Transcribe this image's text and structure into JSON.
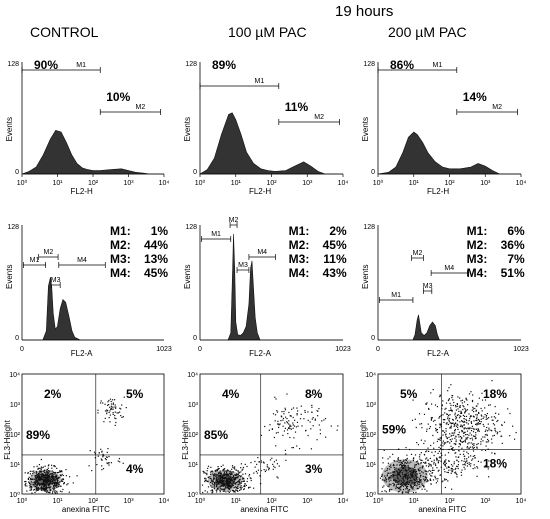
{
  "figure": {
    "time_label": "19 hours",
    "columns": [
      {
        "label": "CONTROL"
      },
      {
        "label": "100 µM  PAC"
      },
      {
        "label": "200 µM  PAC"
      }
    ]
  },
  "chart_data": [
    {
      "type": "area",
      "condition": "CONTROL",
      "xlabel": "FL2-H",
      "ylabel": "Events",
      "xscale": "log",
      "xlim": [
        1,
        10000
      ],
      "xticks": [
        "10⁰",
        "10¹",
        "10²",
        "10³",
        "10⁴"
      ],
      "yticks": [
        "0",
        "128"
      ],
      "ylim": [
        0,
        128
      ],
      "curve": {
        "log_x": [
          0,
          0.2,
          0.4,
          0.6,
          0.8,
          0.95,
          1.1,
          1.25,
          1.4,
          1.55,
          1.7,
          1.85,
          2.0,
          2.2,
          2.5,
          2.8,
          3.0,
          3.2,
          3.4,
          3.6,
          4.0
        ],
        "y": [
          0,
          3,
          8,
          22,
          40,
          50,
          48,
          36,
          22,
          12,
          7,
          5,
          4,
          4,
          5,
          6,
          4,
          2,
          1,
          0,
          0
        ]
      },
      "gates": [
        {
          "name": "M1",
          "percent": "90%",
          "range": [
            1,
            160
          ]
        },
        {
          "name": "M2",
          "percent": "10%",
          "range": [
            160,
            8000
          ]
        }
      ]
    },
    {
      "type": "area",
      "condition": "100 µM  PAC",
      "xlabel": "FL2-H",
      "ylabel": "Events",
      "xscale": "log",
      "xlim": [
        1,
        10000
      ],
      "xticks": [
        "10⁰",
        "10¹",
        "10²",
        "10³",
        "10⁴"
      ],
      "yticks": [
        "0",
        "128"
      ],
      "ylim": [
        0,
        128
      ],
      "curve": {
        "log_x": [
          0,
          0.2,
          0.4,
          0.6,
          0.8,
          0.9,
          1.0,
          1.15,
          1.3,
          1.5,
          1.7,
          1.9,
          2.1,
          2.4,
          2.7,
          2.9,
          3.1,
          3.3,
          3.5,
          4.0
        ],
        "y": [
          0,
          5,
          18,
          45,
          68,
          70,
          62,
          45,
          25,
          12,
          6,
          4,
          3,
          4,
          10,
          14,
          9,
          3,
          0,
          0
        ]
      },
      "gates": [
        {
          "name": "M1",
          "percent": "89%",
          "range": [
            1,
            160
          ]
        },
        {
          "name": "M2",
          "percent": "11%",
          "range": [
            160,
            8000
          ]
        }
      ]
    },
    {
      "type": "area",
      "condition": "200 µM  PAC",
      "xlabel": "FL2-H",
      "ylabel": "Events",
      "xscale": "log",
      "xlim": [
        1,
        10000
      ],
      "xticks": [
        "10⁰",
        "10¹",
        "10²",
        "10³",
        "10⁴"
      ],
      "yticks": [
        "0",
        "128"
      ],
      "ylim": [
        0,
        128
      ],
      "curve": {
        "log_x": [
          0,
          0.3,
          0.5,
          0.7,
          0.85,
          1.0,
          1.1,
          1.25,
          1.4,
          1.6,
          1.8,
          2.0,
          2.3,
          2.6,
          2.8,
          3.0,
          3.2,
          3.4,
          4.0
        ],
        "y": [
          0,
          2,
          8,
          25,
          42,
          48,
          45,
          36,
          24,
          14,
          8,
          6,
          6,
          8,
          12,
          9,
          4,
          0,
          0
        ]
      },
      "gates": [
        {
          "name": "M1",
          "percent": "86%",
          "range": [
            1,
            160
          ]
        },
        {
          "name": "M2",
          "percent": "14%",
          "range": [
            160,
            8000
          ]
        }
      ]
    },
    {
      "type": "area",
      "condition": "CONTROL",
      "xlabel": "FL2-A",
      "ylabel": "Events",
      "xlim": [
        0,
        1023
      ],
      "xticks": [
        "0",
        "1023"
      ],
      "yticks": [
        "0",
        "128"
      ],
      "ylim": [
        0,
        128
      ],
      "curve": {
        "x": [
          0,
          150,
          175,
          190,
          205,
          215,
          225,
          240,
          255,
          275,
          295,
          315,
          340,
          360,
          380,
          420,
          1023
        ],
        "y": [
          0,
          0,
          10,
          60,
          70,
          58,
          30,
          12,
          15,
          35,
          45,
          42,
          25,
          10,
          3,
          0,
          0
        ]
      },
      "gates": [
        {
          "name": "M1",
          "range": [
            10,
            170
          ]
        },
        {
          "name": "M2",
          "range": [
            120,
            260
          ]
        },
        {
          "name": "M3",
          "range": [
            210,
            275
          ]
        },
        {
          "name": "M4",
          "range": [
            265,
            600
          ]
        }
      ],
      "legend": [
        {
          "name": "M1:",
          "value": "1%"
        },
        {
          "name": "M2:",
          "value": "44%"
        },
        {
          "name": "M3:",
          "value": "13%"
        },
        {
          "name": "M4:",
          "value": "45%"
        }
      ]
    },
    {
      "type": "area",
      "condition": "100 µM  PAC",
      "xlabel": "FL2-A",
      "ylabel": "Events",
      "xlim": [
        0,
        1023
      ],
      "xticks": [
        "0",
        "1023"
      ],
      "yticks": [
        "0",
        "128"
      ],
      "ylim": [
        0,
        128
      ],
      "curve": {
        "x": [
          0,
          200,
          220,
          232,
          240,
          248,
          256,
          270,
          290,
          310,
          330,
          350,
          362,
          372,
          382,
          395,
          410,
          430,
          1023
        ],
        "y": [
          0,
          0,
          8,
          70,
          118,
          80,
          20,
          6,
          5,
          8,
          15,
          40,
          80,
          88,
          60,
          25,
          8,
          0,
          0
        ]
      },
      "gates": [
        {
          "name": "M1",
          "range": [
            10,
            220
          ]
        },
        {
          "name": "M2",
          "range": [
            215,
            265
          ]
        },
        {
          "name": "M3",
          "range": [
            265,
            350
          ]
        },
        {
          "name": "M4",
          "range": [
            350,
            540
          ]
        }
      ],
      "legend": [
        {
          "name": "M1:",
          "value": "2%"
        },
        {
          "name": "M2:",
          "value": "45%"
        },
        {
          "name": "M3:",
          "value": "11%"
        },
        {
          "name": "M4:",
          "value": "43%"
        }
      ]
    },
    {
      "type": "area",
      "condition": "200 µM  PAC",
      "xlabel": "FL2-A",
      "ylabel": "Events",
      "xlim": [
        0,
        1023
      ],
      "xticks": [
        "0",
        "1023"
      ],
      "yticks": [
        "0",
        "128"
      ],
      "ylim": [
        0,
        128
      ],
      "curve": {
        "x": [
          0,
          250,
          265,
          280,
          290,
          300,
          310,
          330,
          350,
          370,
          390,
          410,
          425,
          440,
          1023
        ],
        "y": [
          0,
          0,
          6,
          22,
          28,
          18,
          8,
          5,
          8,
          16,
          20,
          16,
          6,
          0,
          0
        ]
      },
      "gates": [
        {
          "name": "M1",
          "range": [
            10,
            250
          ]
        },
        {
          "name": "M2",
          "range": [
            240,
            325
          ]
        },
        {
          "name": "M3",
          "range": [
            325,
            385
          ]
        },
        {
          "name": "M4",
          "range": [
            380,
            640
          ]
        }
      ],
      "legend": [
        {
          "name": "M1:",
          "value": "6%"
        },
        {
          "name": "M2:",
          "value": "36%"
        },
        {
          "name": "M3:",
          "value": "7%"
        },
        {
          "name": "M4:",
          "value": "51%"
        }
      ]
    },
    {
      "type": "scatter",
      "condition": "CONTROL",
      "xlabel": "anexina FITC",
      "ylabel": "FL3-Height",
      "xscale": "log",
      "yscale": "log",
      "xlim": [
        1,
        10000
      ],
      "ylim": [
        1,
        10000
      ],
      "xticks": [
        "10⁰",
        "10¹",
        "10²",
        "10³",
        "10⁴"
      ],
      "yticks": [
        "10⁰",
        "10¹",
        "10²",
        "10³",
        "10⁴"
      ],
      "quadrant_divider": [
        120,
        20
      ],
      "quadrants": {
        "upper_left": "2%",
        "upper_right": "5%",
        "lower_left": "89%",
        "lower_right": "4%"
      },
      "clusters": [
        {
          "cx": 0.65,
          "cy": 0.45,
          "sx": 0.28,
          "sy": 0.22,
          "n": 550
        },
        {
          "cx": 2.5,
          "cy": 2.8,
          "sx": 0.18,
          "sy": 0.22,
          "n": 60
        },
        {
          "cx": 2.3,
          "cy": 1.2,
          "sx": 0.25,
          "sy": 0.25,
          "n": 40
        }
      ]
    },
    {
      "type": "scatter",
      "condition": "100 µM  PAC",
      "xlabel": "anexina FITC",
      "ylabel": "FL3-Height",
      "xscale": "log",
      "yscale": "log",
      "xlim": [
        1,
        10000
      ],
      "ylim": [
        1,
        10000
      ],
      "xticks": [
        "10⁰",
        "10¹",
        "10²",
        "10³",
        "10⁴"
      ],
      "yticks": [
        "10⁰",
        "10¹",
        "10²",
        "10³",
        "10⁴"
      ],
      "quadrant_divider": [
        50,
        20
      ],
      "quadrants": {
        "upper_left": "4%",
        "upper_right": "8%",
        "lower_left": "85%",
        "lower_right": "3%"
      },
      "clusters": [
        {
          "cx": 0.7,
          "cy": 0.45,
          "sx": 0.3,
          "sy": 0.22,
          "n": 500
        },
        {
          "cx": 2.6,
          "cy": 2.4,
          "sx": 0.45,
          "sy": 0.35,
          "n": 120
        },
        {
          "cx": 1.8,
          "cy": 0.9,
          "sx": 0.35,
          "sy": 0.25,
          "n": 50
        }
      ]
    },
    {
      "type": "scatter",
      "condition": "200 µM  PAC",
      "xlabel": "anexina FITC",
      "ylabel": "FL3-Height",
      "xscale": "log",
      "yscale": "log",
      "xlim": [
        1,
        10000
      ],
      "ylim": [
        1,
        10000
      ],
      "xticks": [
        "10⁰",
        "10¹",
        "10²",
        "10³",
        "10⁴"
      ],
      "yticks": [
        "10⁰",
        "10¹",
        "10²",
        "10³",
        "10⁴"
      ],
      "quadrant_divider": [
        60,
        30
      ],
      "quadrants": {
        "upper_left": "5%",
        "upper_right": "18%",
        "lower_left": "59%",
        "lower_right": "18%"
      },
      "clusters": [
        {
          "cx": 0.75,
          "cy": 0.6,
          "sx": 0.4,
          "sy": 0.35,
          "n": 500
        },
        {
          "cx": 2.3,
          "cy": 2.3,
          "sx": 0.55,
          "sy": 0.55,
          "n": 500
        },
        {
          "cx": 2.0,
          "cy": 1.1,
          "sx": 0.45,
          "sy": 0.3,
          "n": 150
        }
      ]
    }
  ]
}
